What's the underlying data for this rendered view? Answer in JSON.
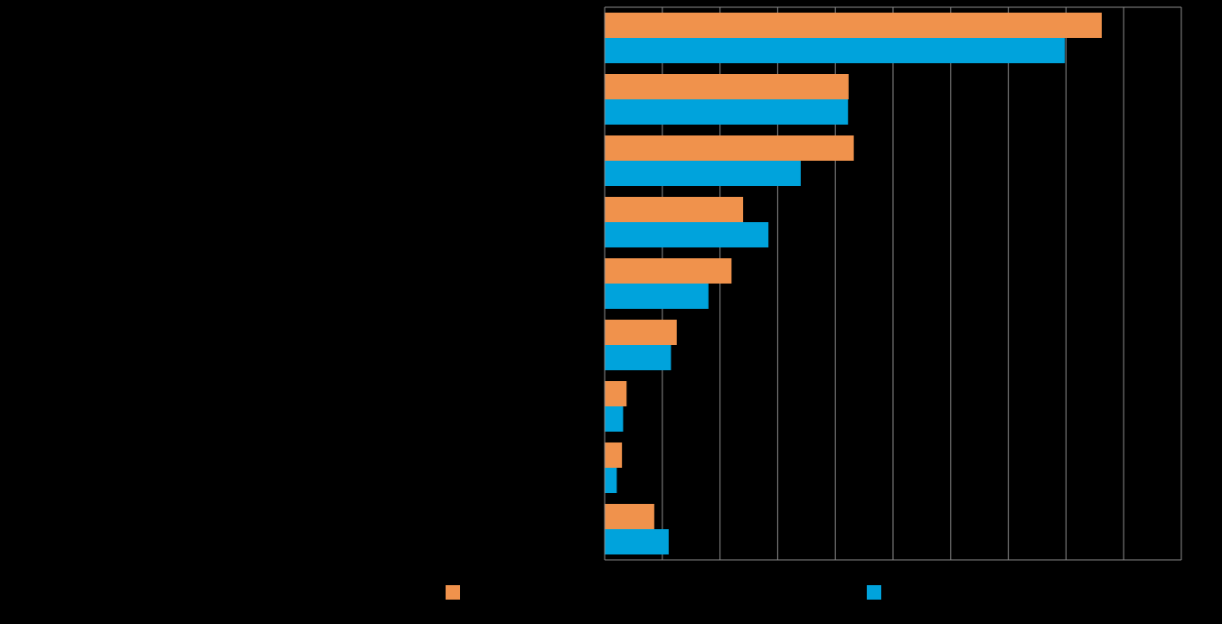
{
  "chart_data": {
    "type": "bar",
    "orientation": "horizontal",
    "title": "",
    "xlabel": "",
    "ylabel": "",
    "categories": [
      "",
      "",
      "",
      "",
      "",
      "",
      "",
      "",
      ""
    ],
    "series": [
      {
        "color": "#F0924C",
        "values": [
          86.2,
          42.3,
          43.2,
          24.0,
          22.0,
          12.5,
          3.8,
          3.0,
          8.6
        ]
      },
      {
        "color": "#00A3DC",
        "values": [
          79.8,
          42.2,
          34.0,
          28.4,
          18.0,
          11.5,
          3.2,
          2.1,
          11.1
        ]
      }
    ],
    "xlim": [
      0,
      100
    ],
    "x_gridlines": [
      10,
      20,
      30,
      40,
      50,
      60,
      70,
      80,
      90,
      100
    ],
    "grid": true,
    "legend": "bottom"
  }
}
